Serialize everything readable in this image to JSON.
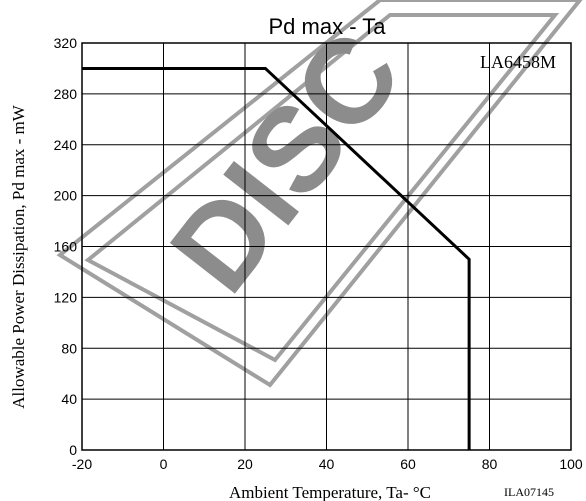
{
  "chart_data": {
    "type": "line",
    "title": "Pd max - Ta",
    "xlabel": "Ambient Temperature, Ta- °C",
    "ylabel": "Allowable Power Dissipation, Pd max - mW",
    "xlim": [
      -20,
      100
    ],
    "ylim": [
      0,
      320
    ],
    "x_ticks": [
      -20,
      0,
      20,
      40,
      60,
      80,
      100
    ],
    "y_ticks": [
      0,
      40,
      80,
      120,
      160,
      200,
      240,
      280,
      320
    ],
    "grid": true,
    "annotations": [
      "LA6458M"
    ],
    "series": [
      {
        "x": [
          -20,
          25,
          75,
          75
        ],
        "y": [
          300,
          300,
          150,
          0
        ]
      }
    ]
  },
  "footer_code": "ILA07145",
  "watermark": "DISCONTINUED",
  "colors": {
    "line": "#000000",
    "grid": "#000000",
    "watermark": "#a0a0a0"
  }
}
